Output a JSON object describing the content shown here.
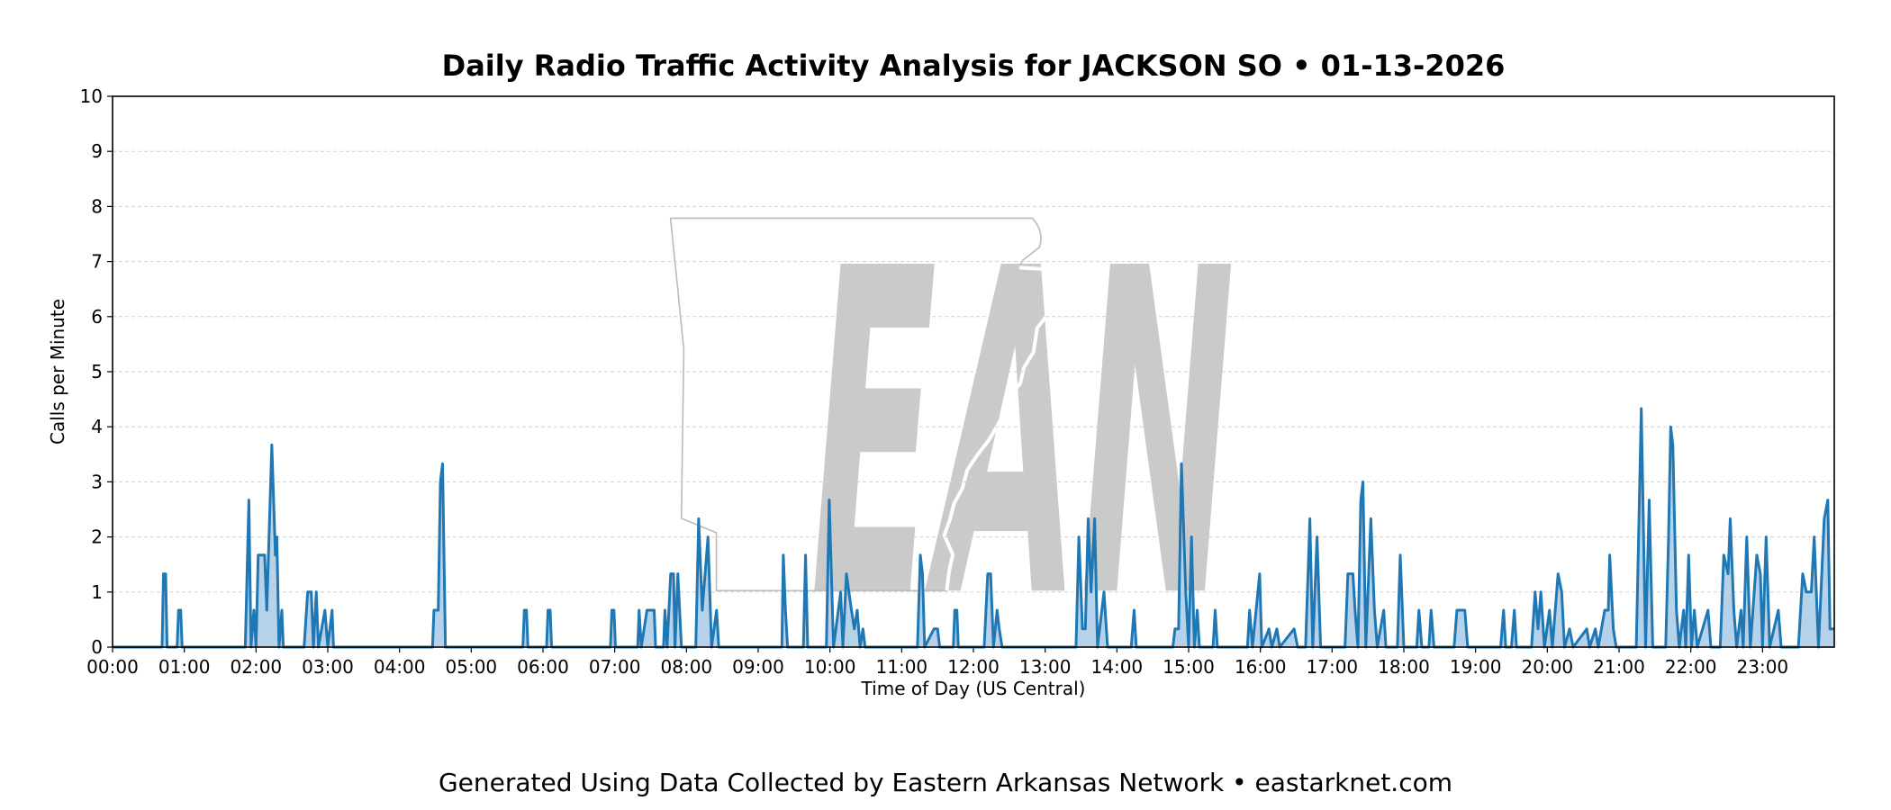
{
  "chart_data": {
    "type": "area-line",
    "title": "Daily Radio Traffic Activity Analysis for JACKSON SO • 01-13-2026",
    "watermark": "EAN",
    "xlabel": "Time of Day (US Central)",
    "ylabel": "Calls per Minute",
    "footer": "Generated Using Data Collected by Eastern Arkansas Network • eastarknet.com",
    "color": "#1f77b4",
    "fill_color": "#b6d2ea",
    "grid": true,
    "xlim": [
      0,
      24
    ],
    "ylim": [
      0,
      10
    ],
    "yticks": [
      0,
      1,
      2,
      3,
      4,
      5,
      6,
      7,
      8,
      9,
      10
    ],
    "xticks": [
      {
        "value": 0,
        "label": "00:00"
      },
      {
        "value": 1,
        "label": "01:00"
      },
      {
        "value": 2,
        "label": "02:00"
      },
      {
        "value": 3,
        "label": "03:00"
      },
      {
        "value": 4,
        "label": "04:00"
      },
      {
        "value": 5,
        "label": "05:00"
      },
      {
        "value": 6,
        "label": "06:00"
      },
      {
        "value": 7,
        "label": "07:00"
      },
      {
        "value": 8,
        "label": "08:00"
      },
      {
        "value": 9,
        "label": "09:00"
      },
      {
        "value": 10,
        "label": "10:00"
      },
      {
        "value": 11,
        "label": "11:00"
      },
      {
        "value": 12,
        "label": "12:00"
      },
      {
        "value": 13,
        "label": "13:00"
      },
      {
        "value": 14,
        "label": "14:00"
      },
      {
        "value": 15,
        "label": "15:00"
      },
      {
        "value": 16,
        "label": "16:00"
      },
      {
        "value": 17,
        "label": "17:00"
      },
      {
        "value": 18,
        "label": "18:00"
      },
      {
        "value": 19,
        "label": "19:00"
      },
      {
        "value": 20,
        "label": "20:00"
      },
      {
        "value": 21,
        "label": "21:00"
      },
      {
        "value": 22,
        "label": "22:00"
      },
      {
        "value": 23,
        "label": "23:00"
      }
    ],
    "x": [
      0,
      0.69,
      0.71,
      0.74,
      0.76,
      0.9,
      0.92,
      0.95,
      0.97,
      1.85,
      1.9,
      1.93,
      1.97,
      2,
      2.03,
      2.12,
      2.15,
      2.22,
      2.27,
      2.29,
      2.32,
      2.36,
      2.38,
      2.67,
      2.72,
      2.77,
      2.8,
      2.84,
      2.87,
      2.96,
      3,
      3.06,
      3.08,
      4.46,
      4.48,
      4.54,
      4.57,
      4.6,
      4.64,
      5.72,
      5.74,
      5.77,
      5.79,
      6.05,
      6.07,
      6.1,
      6.12,
      6.94,
      6.96,
      6.99,
      7.01,
      7.32,
      7.34,
      7.37,
      7.45,
      7.55,
      7.57,
      7.68,
      7.7,
      7.73,
      7.78,
      7.82,
      7.84,
      7.88,
      7.93,
      8.13,
      8.17,
      8.22,
      8.3,
      8.35,
      8.42,
      8.45,
      9.33,
      9.35,
      9.38,
      9.41,
      9.63,
      9.66,
      9.69,
      9.95,
      9.99,
      10.05,
      10.15,
      10.18,
      10.23,
      10.3,
      10.34,
      10.38,
      10.42,
      10.46,
      10.49,
      11.22,
      11.26,
      11.29,
      11.32,
      11.45,
      11.5,
      11.53,
      11.72,
      11.74,
      11.77,
      11.79,
      12.15,
      12.2,
      12.24,
      12.28,
      12.33,
      12.36,
      12.4,
      13.43,
      13.47,
      13.52,
      13.56,
      13.6,
      13.64,
      13.69,
      13.73,
      13.82,
      13.87,
      14.2,
      14.24,
      14.27,
      14.78,
      14.81,
      14.86,
      14.9,
      14.96,
      15,
      15.04,
      15.08,
      15.12,
      15.15,
      15.34,
      15.37,
      15.4,
      15.82,
      15.85,
      15.89,
      15.99,
      16.02,
      16.12,
      16.16,
      16.23,
      16.27,
      16.47,
      16.52,
      16.63,
      16.69,
      16.73,
      16.79,
      16.84,
      17.18,
      17.22,
      17.29,
      17.32,
      17.36,
      17.4,
      17.43,
      17.47,
      17.54,
      17.59,
      17.63,
      17.72,
      17.75,
      17.91,
      17.95,
      18,
      18.18,
      18.21,
      18.25,
      18.35,
      18.38,
      18.42,
      18.7,
      18.74,
      18.85,
      18.89,
      19.35,
      19.39,
      19.42,
      19.5,
      19.54,
      19.57,
      19.78,
      19.83,
      19.87,
      19.91,
      19.96,
      20.03,
      20.07,
      20.15,
      20.2,
      20.24,
      20.31,
      20.36,
      20.55,
      20.59,
      20.67,
      20.71,
      20.8,
      20.85,
      20.87,
      20.92,
      20.96,
      21.24,
      21.31,
      21.37,
      21.42,
      21.47,
      21.65,
      21.69,
      21.72,
      21.75,
      21.8,
      21.84,
      21.9,
      21.93,
      21.97,
      22.01,
      22.05,
      22.09,
      22.24,
      22.28,
      22.41,
      22.46,
      22.52,
      22.55,
      22.6,
      22.64,
      22.7,
      22.73,
      22.78,
      22.83,
      22.92,
      22.97,
      23,
      23.05,
      23.1,
      23.22,
      23.26,
      23.5,
      23.56,
      23.61,
      23.68,
      23.72,
      23.78,
      23.86,
      23.91,
      23.94,
      24
    ],
    "values": [
      0,
      0,
      1.33,
      1.33,
      0,
      0,
      0.67,
      0.67,
      0,
      0,
      2.67,
      0,
      0.67,
      0,
      1.67,
      1.67,
      0.67,
      3.67,
      1.67,
      2,
      0,
      0.67,
      0,
      0,
      1,
      1,
      0,
      1,
      0,
      0.67,
      0,
      0.67,
      0,
      0,
      0.67,
      0.67,
      3,
      3.33,
      0,
      0,
      0.67,
      0.67,
      0,
      0,
      0.67,
      0.67,
      0,
      0,
      0.67,
      0.67,
      0,
      0,
      0.67,
      0,
      0.67,
      0.67,
      0,
      0,
      0.67,
      0,
      1.33,
      1.33,
      0,
      1.33,
      0,
      0,
      2.33,
      0.67,
      2,
      0,
      0.67,
      0,
      0,
      1.67,
      0.67,
      0,
      0,
      1.67,
      0,
      0,
      2.67,
      0,
      1,
      0,
      1.33,
      0.67,
      0.33,
      0.67,
      0,
      0.33,
      0,
      0,
      1.67,
      1.33,
      0,
      0.33,
      0.33,
      0,
      0,
      0.67,
      0.67,
      0,
      0,
      1.33,
      1.33,
      0,
      0.67,
      0.33,
      0,
      0,
      2,
      0.33,
      0.33,
      2.33,
      1,
      2.33,
      0,
      1,
      0,
      0,
      0.67,
      0,
      0,
      0.33,
      0.33,
      3.33,
      1,
      0,
      2,
      0,
      0.67,
      0,
      0,
      0.67,
      0,
      0,
      0.67,
      0,
      1.33,
      0,
      0.33,
      0,
      0.33,
      0,
      0.33,
      0,
      0,
      2.33,
      0,
      2,
      0,
      0,
      1.33,
      1.33,
      0.67,
      0,
      2.67,
      3,
      0,
      2.33,
      0.67,
      0,
      0.67,
      0,
      0,
      1.67,
      0,
      0,
      0.67,
      0,
      0,
      0.67,
      0,
      0,
      0.67,
      0.67,
      0,
      0,
      0.67,
      0,
      0,
      0.67,
      0,
      0,
      1,
      0.33,
      1,
      0,
      0.67,
      0,
      1.33,
      1,
      0,
      0.33,
      0,
      0.33,
      0,
      0.33,
      0,
      0.67,
      0.67,
      1.67,
      0.33,
      0,
      0,
      4.33,
      0,
      2.67,
      0,
      0,
      2,
      4,
      3.67,
      0.67,
      0,
      0.67,
      0,
      1.67,
      0,
      0.67,
      0,
      0.67,
      0,
      0,
      1.67,
      1.33,
      2.33,
      0.67,
      0,
      0.67,
      0,
      2,
      0,
      1.67,
      1.33,
      0,
      2,
      0,
      0.67,
      0,
      0,
      1.33,
      1,
      1,
      2,
      0,
      2.33,
      2.67,
      0.33,
      0.33
    ]
  }
}
